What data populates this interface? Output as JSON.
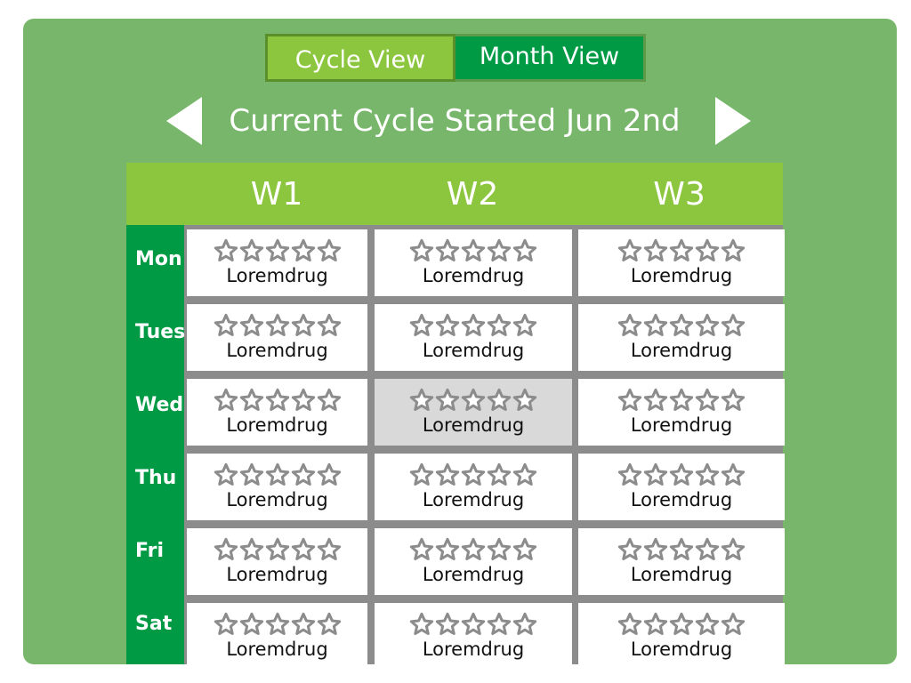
{
  "tabs": {
    "cycle_view": "Cycle View",
    "month_view": "Month View"
  },
  "navigation": {
    "title": "Current Cycle Started Jun 2nd",
    "prev_icon": "triangle-left-icon",
    "next_icon": "triangle-right-icon"
  },
  "weeks": [
    "W1",
    "W2",
    "W3"
  ],
  "days": [
    "Mon",
    "Tues",
    "Wed",
    "Thu",
    "Fri",
    "Sat"
  ],
  "cells": [
    [
      "Loremdrug",
      "Loremdrug",
      "Loremdrug"
    ],
    [
      "Loremdrug",
      "Loremdrug",
      "Loremdrug"
    ],
    [
      "Loremdrug",
      "Loremdrug",
      "Loremdrug"
    ],
    [
      "Loremdrug",
      "Loremdrug",
      "Loremdrug"
    ],
    [
      "Loremdrug",
      "Loremdrug",
      "Loremdrug"
    ],
    [
      "Loremdrug",
      "Loremdrug",
      "Loremdrug"
    ]
  ],
  "rating": {
    "max_stars": 5,
    "filled_stars": 0,
    "icon": "star-outline-icon"
  },
  "selected_cell": {
    "day": "Wed",
    "week": "W2"
  },
  "colors": {
    "panel_bg": "#78b76b",
    "active_tab": "#8cc63f",
    "inactive_tab": "#009a44",
    "week_header": "#8cc63f",
    "day_column": "#009a44",
    "cell_bg": "#ffffff",
    "selected_cell_bg": "#d9d9d9",
    "star_outline": "#8c8c8c"
  }
}
